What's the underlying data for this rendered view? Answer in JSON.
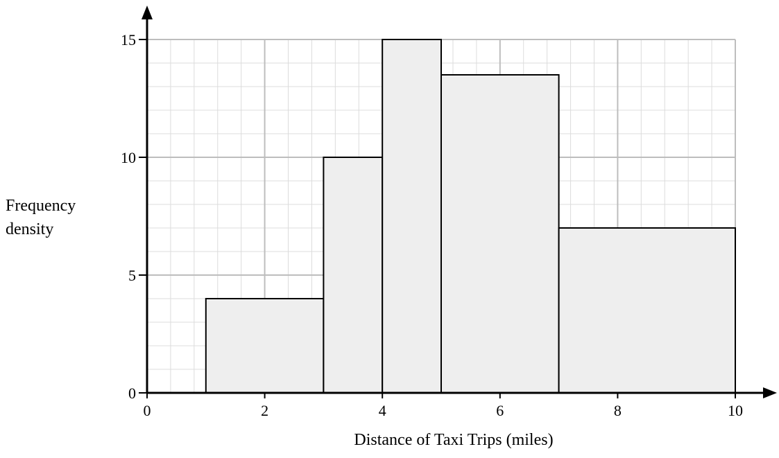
{
  "chart_data": {
    "type": "bar",
    "subtype": "histogram",
    "xlabel": "Distance of Taxi Trips (miles)",
    "ylabel": [
      "Frequency",
      "density"
    ],
    "xlim": [
      0,
      10
    ],
    "ylim": [
      0,
      15
    ],
    "x_ticks": [
      0,
      2,
      4,
      6,
      8,
      10
    ],
    "y_ticks": [
      0,
      5,
      10,
      15
    ],
    "x_minor_step": 0.4,
    "y_minor_step": 1,
    "grid": true,
    "bars": [
      {
        "x0": 1,
        "x1": 3,
        "value": 4
      },
      {
        "x0": 3,
        "x1": 4,
        "value": 10
      },
      {
        "x0": 4,
        "x1": 5,
        "value": 15
      },
      {
        "x0": 5,
        "x1": 7,
        "value": 13.5
      },
      {
        "x0": 7,
        "x1": 10,
        "value": 7
      }
    ],
    "colors": {
      "bar_fill": "#eeeeee",
      "bar_stroke": "#000000"
    }
  }
}
